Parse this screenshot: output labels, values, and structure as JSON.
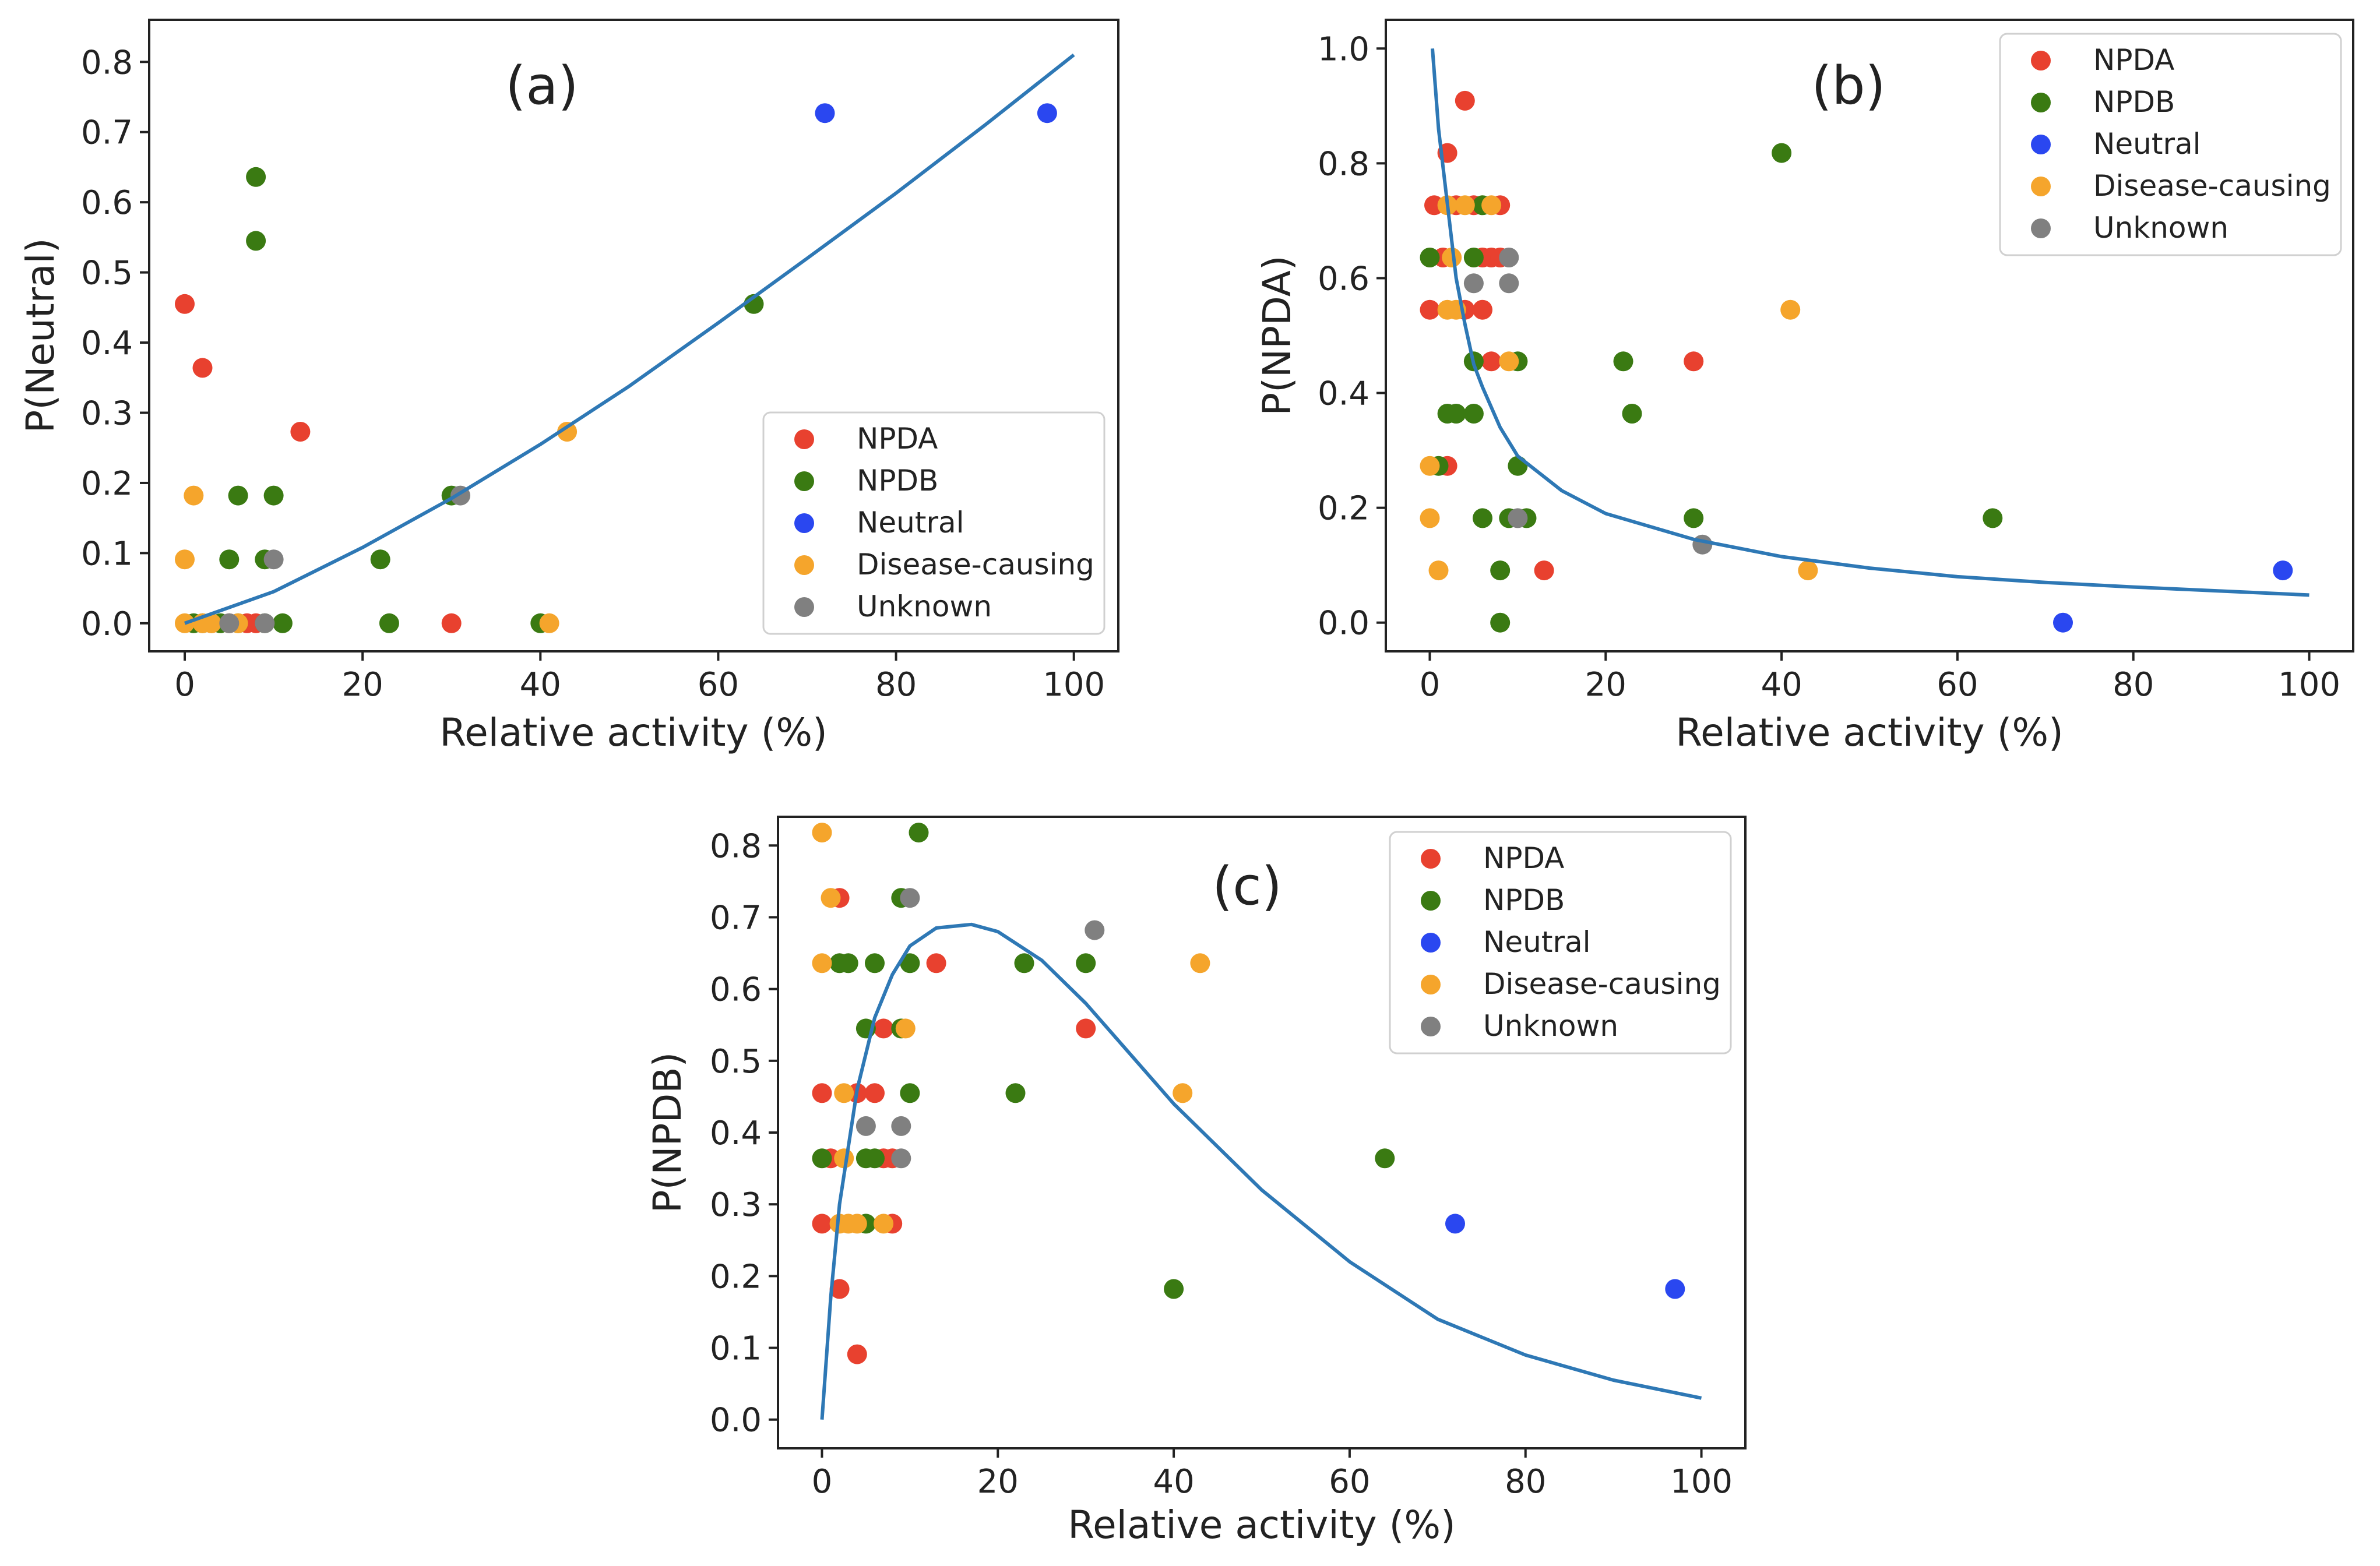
{
  "chart_data": [
    {
      "type": "scatter",
      "panel_label": "(a)",
      "xlabel": "Relative activity (%)",
      "ylabel": "P(Neutral)",
      "xlim": [
        -4,
        105
      ],
      "ylim": [
        -0.04,
        0.86
      ],
      "xticks": [
        0,
        20,
        40,
        60,
        80,
        100
      ],
      "yticks": [
        0.0,
        0.1,
        0.2,
        0.3,
        0.4,
        0.5,
        0.6,
        0.7,
        0.8
      ],
      "ytick_labels": [
        "0.0",
        "0.1",
        "0.2",
        "0.3",
        "0.4",
        "0.5",
        "0.6",
        "0.7",
        "0.8"
      ],
      "grid": false,
      "legend_position": "bottom-right",
      "legend": [
        "NPDA",
        "NPDB",
        "Neutral",
        "Disease-causing",
        "Unknown"
      ],
      "series": [
        {
          "name": "NPDA",
          "color": "#e8412f",
          "points": [
            [
              0,
              0.455
            ],
            [
              2,
              0.364
            ],
            [
              13,
              0.273
            ],
            [
              30,
              0.0
            ],
            [
              5,
              0.0
            ],
            [
              7,
              0.0
            ],
            [
              8,
              0.0
            ],
            [
              3,
              0.0
            ]
          ]
        },
        {
          "name": "NPDB",
          "color": "#3a7a12",
          "points": [
            [
              8,
              0.636
            ],
            [
              8,
              0.545
            ],
            [
              64,
              0.455
            ],
            [
              6,
              0.182
            ],
            [
              10,
              0.182
            ],
            [
              30,
              0.182
            ],
            [
              5,
              0.091
            ],
            [
              9,
              0.091
            ],
            [
              22,
              0.091
            ],
            [
              1,
              0.0
            ],
            [
              2,
              0.0
            ],
            [
              4,
              0.0
            ],
            [
              6,
              0.0
            ],
            [
              9,
              0.0
            ],
            [
              11,
              0.0
            ],
            [
              23,
              0.0
            ],
            [
              40,
              0.0
            ]
          ]
        },
        {
          "name": "Neutral",
          "color": "#2a47f0",
          "points": [
            [
              72,
              0.727
            ],
            [
              97,
              0.727
            ]
          ]
        },
        {
          "name": "Disease-causing",
          "color": "#f5a52c",
          "points": [
            [
              43,
              0.273
            ],
            [
              1,
              0.182
            ],
            [
              0,
              0.091
            ],
            [
              0,
              0.0
            ],
            [
              2,
              0.0
            ],
            [
              3,
              0.0
            ],
            [
              6,
              0.0
            ],
            [
              41,
              0.0
            ]
          ]
        },
        {
          "name": "Unknown",
          "color": "#808080",
          "points": [
            [
              31,
              0.182
            ],
            [
              10,
              0.091
            ],
            [
              5,
              0.0
            ],
            [
              9,
              0.0
            ]
          ]
        }
      ],
      "fit_curve": {
        "color": "#2e78b5",
        "points": [
          [
            0,
            0.0
          ],
          [
            10,
            0.045
          ],
          [
            20,
            0.108
          ],
          [
            30,
            0.178
          ],
          [
            40,
            0.255
          ],
          [
            50,
            0.338
          ],
          [
            60,
            0.428
          ],
          [
            70,
            0.52
          ],
          [
            80,
            0.613
          ],
          [
            90,
            0.71
          ],
          [
            100,
            0.81
          ]
        ]
      }
    },
    {
      "type": "scatter",
      "panel_label": "(b)",
      "xlabel": "Relative activity (%)",
      "ylabel": "P(NPDA)",
      "xlim": [
        -5,
        105
      ],
      "ylim": [
        -0.05,
        1.05
      ],
      "xticks": [
        0,
        20,
        40,
        60,
        80,
        100
      ],
      "yticks": [
        0.0,
        0.2,
        0.4,
        0.6,
        0.8,
        1.0
      ],
      "ytick_labels": [
        "0.0",
        "0.2",
        "0.4",
        "0.6",
        "0.8",
        "1.0"
      ],
      "grid": false,
      "legend_position": "top-right",
      "legend": [
        "NPDA",
        "NPDB",
        "Neutral",
        "Disease-causing",
        "Unknown"
      ],
      "series": [
        {
          "name": "NPDA",
          "color": "#e8412f",
          "points": [
            [
              4,
              0.909
            ],
            [
              2,
              0.818
            ],
            [
              0.5,
              0.727
            ],
            [
              3,
              0.727
            ],
            [
              5,
              0.727
            ],
            [
              8,
              0.727
            ],
            [
              1.5,
              0.636
            ],
            [
              6,
              0.636
            ],
            [
              7,
              0.636
            ],
            [
              8,
              0.636
            ],
            [
              0,
              0.545
            ],
            [
              4,
              0.545
            ],
            [
              6,
              0.545
            ],
            [
              7,
              0.455
            ],
            [
              30,
              0.455
            ],
            [
              2,
              0.273
            ],
            [
              13,
              0.091
            ]
          ]
        },
        {
          "name": "NPDB",
          "color": "#3a7a12",
          "points": [
            [
              40,
              0.818
            ],
            [
              6,
              0.727
            ],
            [
              0,
              0.636
            ],
            [
              5,
              0.636
            ],
            [
              5,
              0.455
            ],
            [
              10,
              0.455
            ],
            [
              22,
              0.455
            ],
            [
              2,
              0.364
            ],
            [
              3,
              0.364
            ],
            [
              5,
              0.364
            ],
            [
              23,
              0.364
            ],
            [
              1,
              0.273
            ],
            [
              10,
              0.273
            ],
            [
              6,
              0.182
            ],
            [
              9,
              0.182
            ],
            [
              11,
              0.182
            ],
            [
              30,
              0.182
            ],
            [
              64,
              0.182
            ],
            [
              8,
              0.091
            ],
            [
              8,
              0.0
            ]
          ]
        },
        {
          "name": "Neutral",
          "color": "#2a47f0",
          "points": [
            [
              97,
              0.091
            ],
            [
              72,
              0.0
            ]
          ]
        },
        {
          "name": "Disease-causing",
          "color": "#f5a52c",
          "points": [
            [
              2,
              0.727
            ],
            [
              4,
              0.727
            ],
            [
              7,
              0.727
            ],
            [
              2.5,
              0.636
            ],
            [
              2,
              0.545
            ],
            [
              3,
              0.545
            ],
            [
              41,
              0.545
            ],
            [
              9,
              0.455
            ],
            [
              0,
              0.273
            ],
            [
              0,
              0.182
            ],
            [
              1,
              0.091
            ],
            [
              43,
              0.091
            ]
          ]
        },
        {
          "name": "Unknown",
          "color": "#808080",
          "points": [
            [
              9,
              0.636
            ],
            [
              5,
              0.591
            ],
            [
              9,
              0.591
            ],
            [
              10,
              0.182
            ],
            [
              31,
              0.136
            ]
          ]
        }
      ],
      "fit_curve": {
        "color": "#2e78b5",
        "points": [
          [
            0.3,
            1.0
          ],
          [
            1,
            0.86
          ],
          [
            2,
            0.73
          ],
          [
            3,
            0.6
          ],
          [
            4,
            0.52
          ],
          [
            5,
            0.45
          ],
          [
            6,
            0.41
          ],
          [
            8,
            0.34
          ],
          [
            10,
            0.29
          ],
          [
            15,
            0.23
          ],
          [
            20,
            0.19
          ],
          [
            30,
            0.145
          ],
          [
            40,
            0.115
          ],
          [
            50,
            0.095
          ],
          [
            60,
            0.08
          ],
          [
            70,
            0.07
          ],
          [
            80,
            0.062
          ],
          [
            90,
            0.055
          ],
          [
            100,
            0.048
          ]
        ]
      }
    },
    {
      "type": "scatter",
      "panel_label": "(c)",
      "xlabel": "Relative activity (%)",
      "ylabel": "P(NPDB)",
      "xlim": [
        -5,
        105
      ],
      "ylim": [
        -0.04,
        0.84
      ],
      "xticks": [
        0,
        20,
        40,
        60,
        80,
        100
      ],
      "yticks": [
        0.0,
        0.1,
        0.2,
        0.3,
        0.4,
        0.5,
        0.6,
        0.7,
        0.8
      ],
      "ytick_labels": [
        "0.0",
        "0.1",
        "0.2",
        "0.3",
        "0.4",
        "0.5",
        "0.6",
        "0.7",
        "0.8"
      ],
      "grid": false,
      "legend_position": "top-right",
      "legend": [
        "NPDA",
        "NPDB",
        "Neutral",
        "Disease-causing",
        "Unknown"
      ],
      "series": [
        {
          "name": "NPDA",
          "color": "#e8412f",
          "points": [
            [
              2,
              0.727
            ],
            [
              13,
              0.636
            ],
            [
              7,
              0.545
            ],
            [
              30,
              0.545
            ],
            [
              0,
              0.455
            ],
            [
              4,
              0.455
            ],
            [
              6,
              0.455
            ],
            [
              1,
              0.364
            ],
            [
              7,
              0.364
            ],
            [
              8,
              0.364
            ],
            [
              0,
              0.273
            ],
            [
              8,
              0.273
            ],
            [
              2,
              0.182
            ],
            [
              4,
              0.091
            ]
          ]
        },
        {
          "name": "NPDB",
          "color": "#3a7a12",
          "points": [
            [
              11,
              0.818
            ],
            [
              9,
              0.727
            ],
            [
              2,
              0.636
            ],
            [
              3,
              0.636
            ],
            [
              6,
              0.636
            ],
            [
              10,
              0.636
            ],
            [
              23,
              0.636
            ],
            [
              30,
              0.636
            ],
            [
              5,
              0.545
            ],
            [
              9,
              0.545
            ],
            [
              10,
              0.455
            ],
            [
              22,
              0.455
            ],
            [
              0,
              0.364
            ],
            [
              5,
              0.364
            ],
            [
              6,
              0.364
            ],
            [
              64,
              0.364
            ],
            [
              5,
              0.273
            ],
            [
              40,
              0.182
            ]
          ]
        },
        {
          "name": "Neutral",
          "color": "#2a47f0",
          "points": [
            [
              72,
              0.273
            ],
            [
              97,
              0.182
            ]
          ]
        },
        {
          "name": "Disease-causing",
          "color": "#f5a52c",
          "points": [
            [
              0,
              0.818
            ],
            [
              1,
              0.727
            ],
            [
              0,
              0.636
            ],
            [
              43,
              0.636
            ],
            [
              9.5,
              0.545
            ],
            [
              2.5,
              0.455
            ],
            [
              41,
              0.455
            ],
            [
              2.5,
              0.364
            ],
            [
              2,
              0.273
            ],
            [
              3,
              0.273
            ],
            [
              4,
              0.273
            ],
            [
              7,
              0.273
            ]
          ]
        },
        {
          "name": "Unknown",
          "color": "#808080",
          "points": [
            [
              10,
              0.727
            ],
            [
              31,
              0.682
            ],
            [
              5,
              0.409
            ],
            [
              9,
              0.409
            ],
            [
              9,
              0.364
            ]
          ]
        }
      ],
      "fit_curve": {
        "color": "#2e78b5",
        "points": [
          [
            0,
            0.0
          ],
          [
            1,
            0.17
          ],
          [
            2,
            0.3
          ],
          [
            4,
            0.46
          ],
          [
            6,
            0.56
          ],
          [
            8,
            0.62
          ],
          [
            10,
            0.66
          ],
          [
            13,
            0.685
          ],
          [
            17,
            0.69
          ],
          [
            20,
            0.68
          ],
          [
            25,
            0.64
          ],
          [
            30,
            0.58
          ],
          [
            40,
            0.44
          ],
          [
            50,
            0.32
          ],
          [
            60,
            0.22
          ],
          [
            70,
            0.14
          ],
          [
            80,
            0.09
          ],
          [
            90,
            0.055
          ],
          [
            100,
            0.03
          ]
        ]
      }
    }
  ]
}
